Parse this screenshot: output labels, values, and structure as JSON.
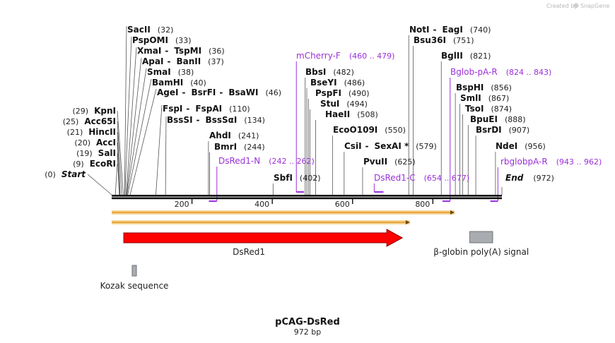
{
  "branding": {
    "created_by": "Created by",
    "product": "SnapGene"
  },
  "map": {
    "title": "pCAG-DsRed",
    "length_label": "972 bp",
    "length": 972,
    "ticks": [
      "200",
      "400",
      "600",
      "800"
    ]
  },
  "boundaries": [
    {
      "name": "Start",
      "position": "(0)",
      "pos": 0
    },
    {
      "name": "End",
      "position": "(972)",
      "pos": 972
    }
  ],
  "left_sites": [
    {
      "names": [
        "EcoRI"
      ],
      "position": "(9)",
      "pos": 9
    },
    {
      "names": [
        "SalI"
      ],
      "position": "(19)",
      "pos": 19
    },
    {
      "names": [
        "AccI"
      ],
      "position": "(20)",
      "pos": 20
    },
    {
      "names": [
        "HincII"
      ],
      "position": "(21)",
      "pos": 21
    },
    {
      "names": [
        "Acc65I"
      ],
      "position": "(25)",
      "pos": 25
    },
    {
      "names": [
        "KpnI"
      ],
      "position": "(29)",
      "pos": 29
    }
  ],
  "top_sites": [
    {
      "names": [
        "BssSI",
        "BssSαI"
      ],
      "position": "(134)",
      "pos": 134
    },
    {
      "names": [
        "FspI",
        "FspAI"
      ],
      "position": "(110)",
      "pos": 110
    },
    {
      "names": [
        "AgeI",
        "BsrFI",
        "BsaWI"
      ],
      "position": "(46)",
      "pos": 46
    },
    {
      "names": [
        "BamHI"
      ],
      "position": "(40)",
      "pos": 40
    },
    {
      "names": [
        "SmaI"
      ],
      "position": "(38)",
      "pos": 38
    },
    {
      "names": [
        "ApaI",
        "BanII"
      ],
      "position": "(37)",
      "pos": 37
    },
    {
      "names": [
        "XmaI",
        "TspMI"
      ],
      "position": "(36)",
      "pos": 36
    },
    {
      "names": [
        "PspOMI"
      ],
      "position": "(33)",
      "pos": 33
    },
    {
      "names": [
        "SacII"
      ],
      "position": "(32)",
      "pos": 32
    }
  ],
  "mid_sites": [
    {
      "names": [
        "AhdI"
      ],
      "position": "(241)",
      "pos": 241
    },
    {
      "names": [
        "BmrI"
      ],
      "position": "(244)",
      "pos": 244
    },
    {
      "names": [
        "SbfI"
      ],
      "position": "(402)",
      "pos": 402
    },
    {
      "names": [
        "BbsI"
      ],
      "position": "(482)",
      "pos": 482
    },
    {
      "names": [
        "BseYI"
      ],
      "position": "(486)",
      "pos": 486
    },
    {
      "names": [
        "PspFI"
      ],
      "position": "(490)",
      "pos": 490
    },
    {
      "names": [
        "StuI"
      ],
      "position": "(494)",
      "pos": 494
    },
    {
      "names": [
        "HaeII"
      ],
      "position": "(508)",
      "pos": 508
    },
    {
      "names": [
        "EcoO109I"
      ],
      "position": "(550)",
      "pos": 550
    },
    {
      "names": [
        "CsiI",
        "SexAI *"
      ],
      "position": "(579)",
      "pos": 579
    },
    {
      "names": [
        "PvuII"
      ],
      "position": "(625)",
      "pos": 625
    },
    {
      "names": [
        "NotI",
        "EagI"
      ],
      "position": "(740)",
      "pos": 740
    },
    {
      "names": [
        "Bsu36I"
      ],
      "position": "(751)",
      "pos": 751
    },
    {
      "names": [
        "BglII"
      ],
      "position": "(821)",
      "pos": 821
    },
    {
      "names": [
        "BspHI"
      ],
      "position": "(856)",
      "pos": 856
    },
    {
      "names": [
        "SmlI"
      ],
      "position": "(867)",
      "pos": 867
    },
    {
      "names": [
        "TsoI"
      ],
      "position": "(874)",
      "pos": 874
    },
    {
      "names": [
        "BpuEI"
      ],
      "position": "(888)",
      "pos": 888
    },
    {
      "names": [
        "BsrDI"
      ],
      "position": "(907)",
      "pos": 907
    },
    {
      "names": [
        "NdeI"
      ],
      "position": "(956)",
      "pos": 956
    }
  ],
  "primers": [
    {
      "name": "DsRed1-N",
      "range": "(242 .. 262)",
      "start": 242,
      "end": 262,
      "strand": "bottom"
    },
    {
      "name": "mCherry-F",
      "range": "(460 .. 479)",
      "start": 460,
      "end": 479,
      "strand": "top"
    },
    {
      "name": "DsRed1-C",
      "range": "(654 .. 677)",
      "start": 654,
      "end": 677,
      "strand": "top"
    },
    {
      "name": "Bglob-pA-R",
      "range": "(824 .. 843)",
      "start": 824,
      "end": 843,
      "strand": "bottom"
    },
    {
      "name": "rbglobpA-R",
      "range": "(943 .. 962)",
      "start": 943,
      "end": 962,
      "strand": "bottom"
    }
  ],
  "features": [
    {
      "name": "DsRed1",
      "start": 30,
      "end": 724,
      "type": "arrow",
      "color": "#ff0000"
    },
    {
      "name": "β-globin poly(A) signal",
      "start": 892,
      "end": 949,
      "type": "box",
      "color": "#a9acb0"
    },
    {
      "name": "Kozak sequence",
      "start": 24,
      "end": 32,
      "type": "box",
      "color": "#a9acb0"
    }
  ],
  "orfs": [
    {
      "start": 0,
      "end": 854,
      "color": "#e8a640"
    },
    {
      "start": 0,
      "end": 743,
      "color": "#e8a640"
    }
  ]
}
